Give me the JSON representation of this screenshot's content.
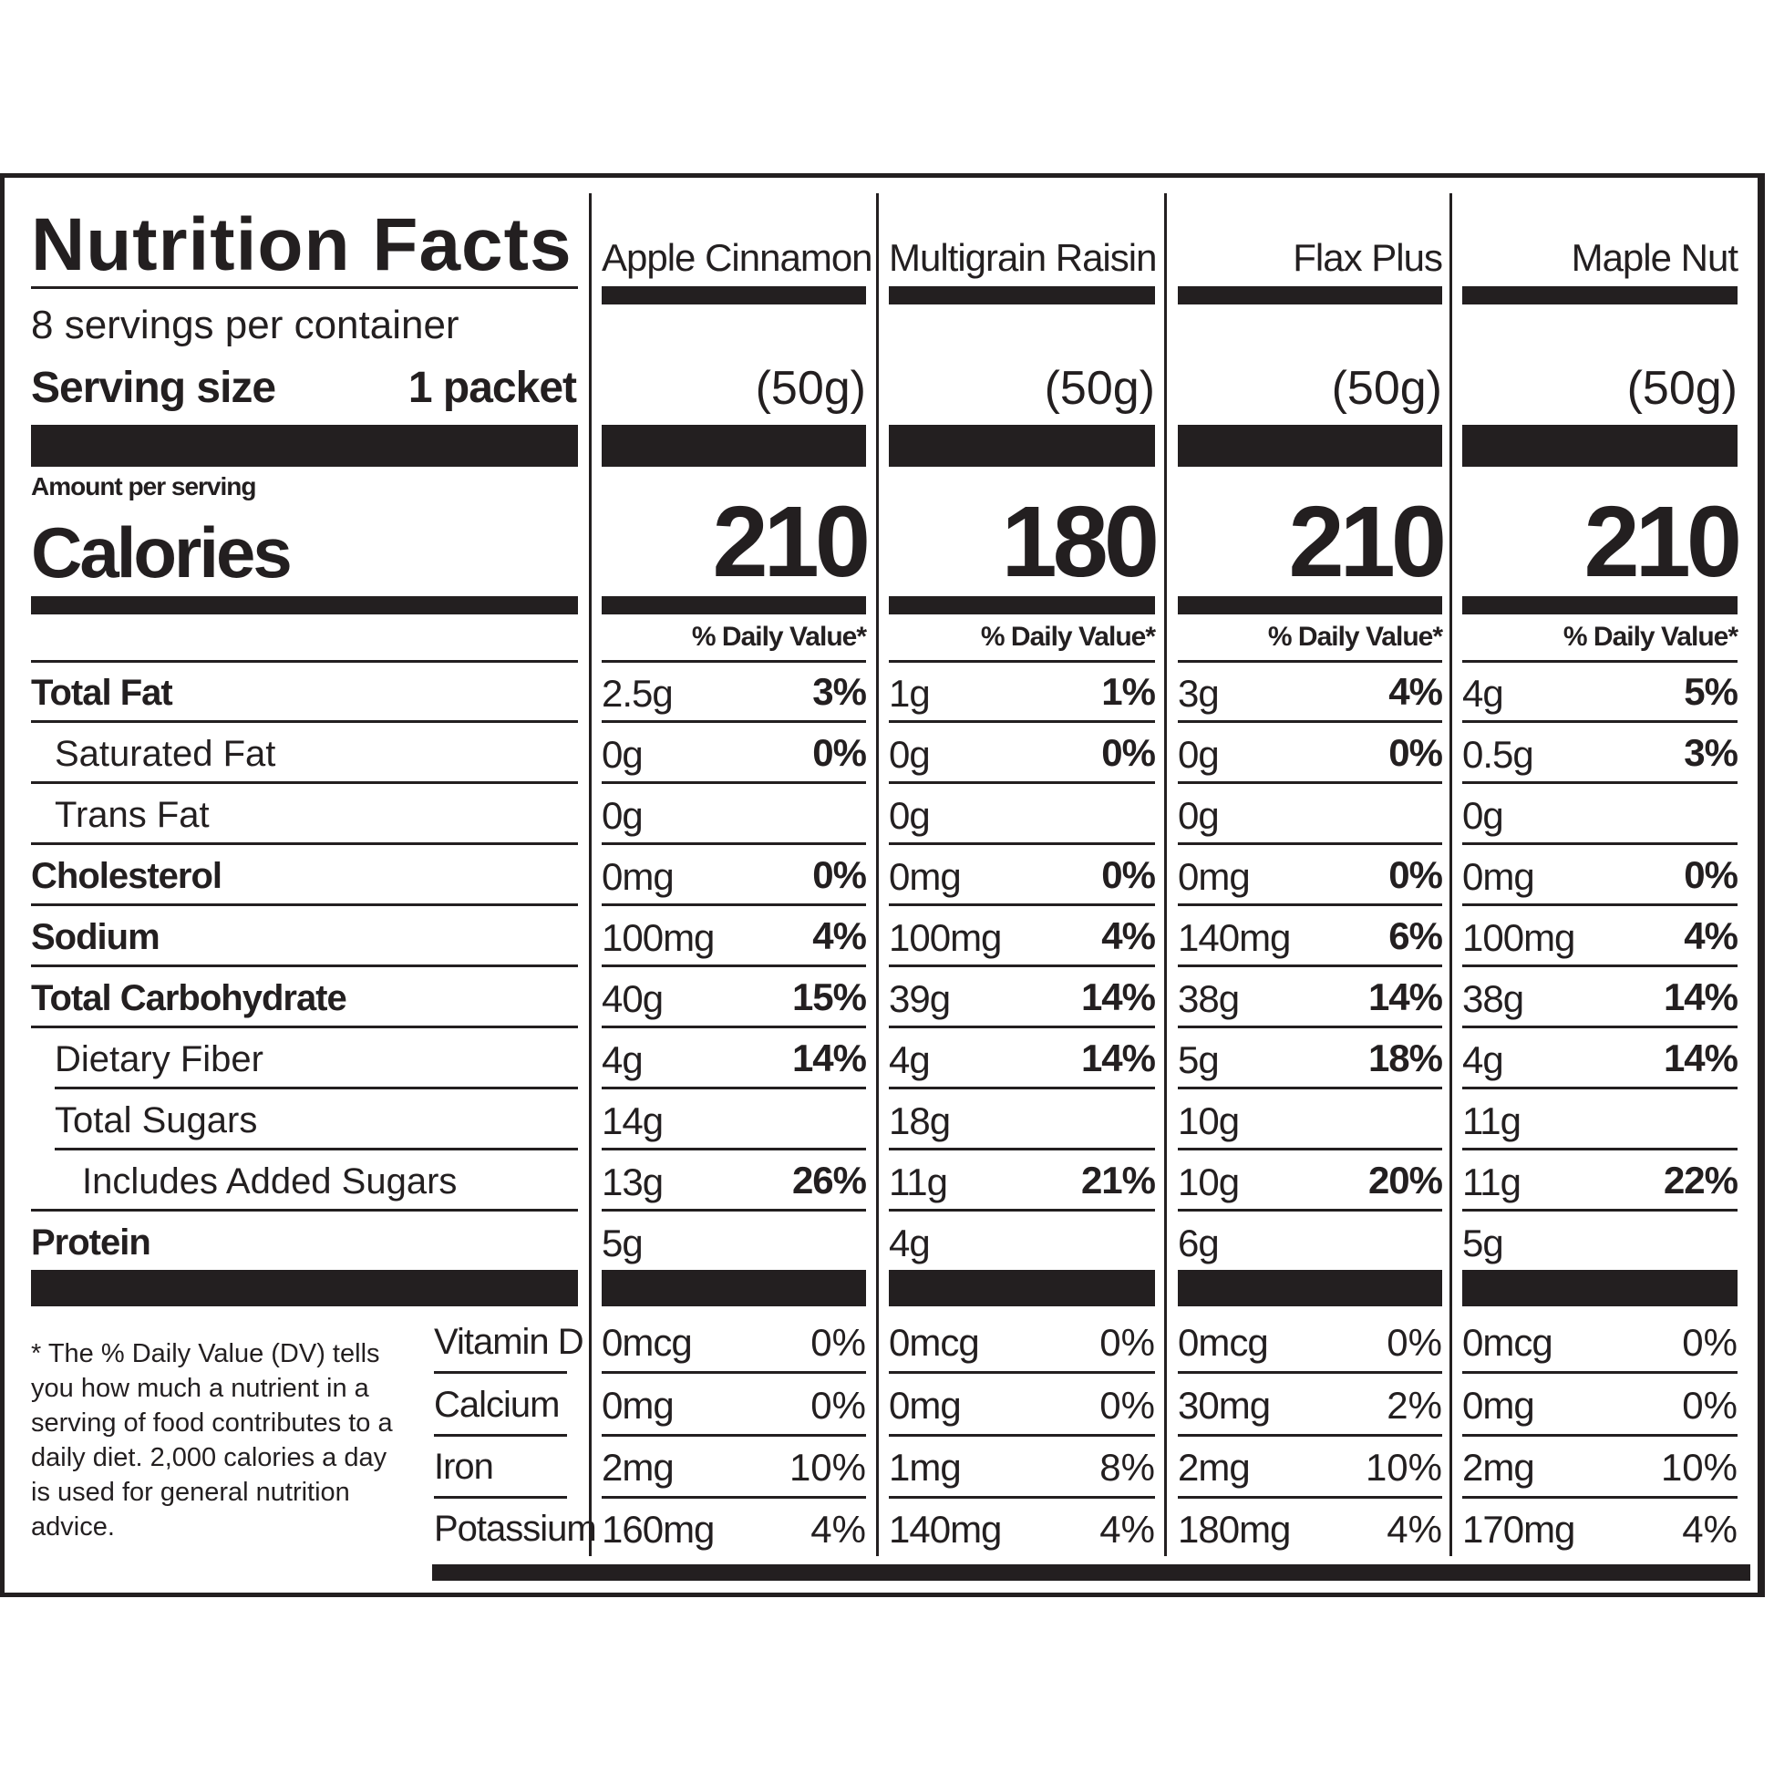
{
  "label": {
    "title": "Nutrition Facts",
    "servings_per_container": "8 servings per container",
    "serving_size_label": "Serving size",
    "serving_size_value": "1 packet",
    "amount_per_serving": "Amount per serving",
    "calories_label": "Calories",
    "footnote": "* The % Daily Value (DV) tells you how much a nutrient in a serving of food contributes to a daily diet. 2,000 calories a day is used for general nutrition advice."
  },
  "nutrient_labels": [
    "Total Fat",
    "Saturated Fat",
    "Trans Fat",
    "Cholesterol",
    "Sodium",
    "Total Carbohydrate",
    "Dietary Fiber",
    "Total Sugars",
    "Includes Added Sugars",
    "Protein"
  ],
  "micro_labels": [
    "Vitamin D",
    "Calcium",
    "Iron",
    "Potassium"
  ],
  "columns": [
    {
      "name": "Apple Cinnamon",
      "serving": "(50g)",
      "calories": "210",
      "dv_header": "% Daily Value*",
      "nutrients": [
        {
          "amount": "2.5g",
          "dv": "3%"
        },
        {
          "amount": "0g",
          "dv": "0%"
        },
        {
          "amount": "0g",
          "dv": ""
        },
        {
          "amount": "0mg",
          "dv": "0%"
        },
        {
          "amount": "100mg",
          "dv": "4%"
        },
        {
          "amount": "40g",
          "dv": "15%"
        },
        {
          "amount": "4g",
          "dv": "14%"
        },
        {
          "amount": "14g",
          "dv": ""
        },
        {
          "amount": "13g",
          "dv": "26%"
        },
        {
          "amount": "5g",
          "dv": ""
        }
      ],
      "micros": [
        {
          "amount": "0mcg",
          "dv": "0%"
        },
        {
          "amount": "0mg",
          "dv": "0%"
        },
        {
          "amount": "2mg",
          "dv": "10%"
        },
        {
          "amount": "160mg",
          "dv": "4%"
        }
      ]
    },
    {
      "name": "Multigrain Raisin",
      "serving": "(50g)",
      "calories": "180",
      "dv_header": "% Daily Value*",
      "nutrients": [
        {
          "amount": "1g",
          "dv": "1%"
        },
        {
          "amount": "0g",
          "dv": "0%"
        },
        {
          "amount": "0g",
          "dv": ""
        },
        {
          "amount": "0mg",
          "dv": "0%"
        },
        {
          "amount": "100mg",
          "dv": "4%"
        },
        {
          "amount": "39g",
          "dv": "14%"
        },
        {
          "amount": "4g",
          "dv": "14%"
        },
        {
          "amount": "18g",
          "dv": ""
        },
        {
          "amount": "11g",
          "dv": "21%"
        },
        {
          "amount": "4g",
          "dv": ""
        }
      ],
      "micros": [
        {
          "amount": "0mcg",
          "dv": "0%"
        },
        {
          "amount": "0mg",
          "dv": "0%"
        },
        {
          "amount": "1mg",
          "dv": "8%"
        },
        {
          "amount": "140mg",
          "dv": "4%"
        }
      ]
    },
    {
      "name": "Flax Plus",
      "serving": "(50g)",
      "calories": "210",
      "dv_header": "% Daily Value*",
      "nutrients": [
        {
          "amount": "3g",
          "dv": "4%"
        },
        {
          "amount": "0g",
          "dv": "0%"
        },
        {
          "amount": "0g",
          "dv": ""
        },
        {
          "amount": "0mg",
          "dv": "0%"
        },
        {
          "amount": "140mg",
          "dv": "6%"
        },
        {
          "amount": "38g",
          "dv": "14%"
        },
        {
          "amount": "5g",
          "dv": "18%"
        },
        {
          "amount": "10g",
          "dv": ""
        },
        {
          "amount": "10g",
          "dv": "20%"
        },
        {
          "amount": "6g",
          "dv": ""
        }
      ],
      "micros": [
        {
          "amount": "0mcg",
          "dv": "0%"
        },
        {
          "amount": "30mg",
          "dv": "2%"
        },
        {
          "amount": "2mg",
          "dv": "10%"
        },
        {
          "amount": "180mg",
          "dv": "4%"
        }
      ]
    },
    {
      "name": "Maple Nut",
      "serving": "(50g)",
      "calories": "210",
      "dv_header": "% Daily Value*",
      "nutrients": [
        {
          "amount": "4g",
          "dv": "5%"
        },
        {
          "amount": "0.5g",
          "dv": "3%"
        },
        {
          "amount": "0g",
          "dv": ""
        },
        {
          "amount": "0mg",
          "dv": "0%"
        },
        {
          "amount": "100mg",
          "dv": "4%"
        },
        {
          "amount": "38g",
          "dv": "14%"
        },
        {
          "amount": "4g",
          "dv": "14%"
        },
        {
          "amount": "11g",
          "dv": ""
        },
        {
          "amount": "11g",
          "dv": "22%"
        },
        {
          "amount": "5g",
          "dv": ""
        }
      ],
      "micros": [
        {
          "amount": "0mcg",
          "dv": "0%"
        },
        {
          "amount": "0mg",
          "dv": "0%"
        },
        {
          "amount": "2mg",
          "dv": "10%"
        },
        {
          "amount": "170mg",
          "dv": "4%"
        }
      ]
    }
  ]
}
